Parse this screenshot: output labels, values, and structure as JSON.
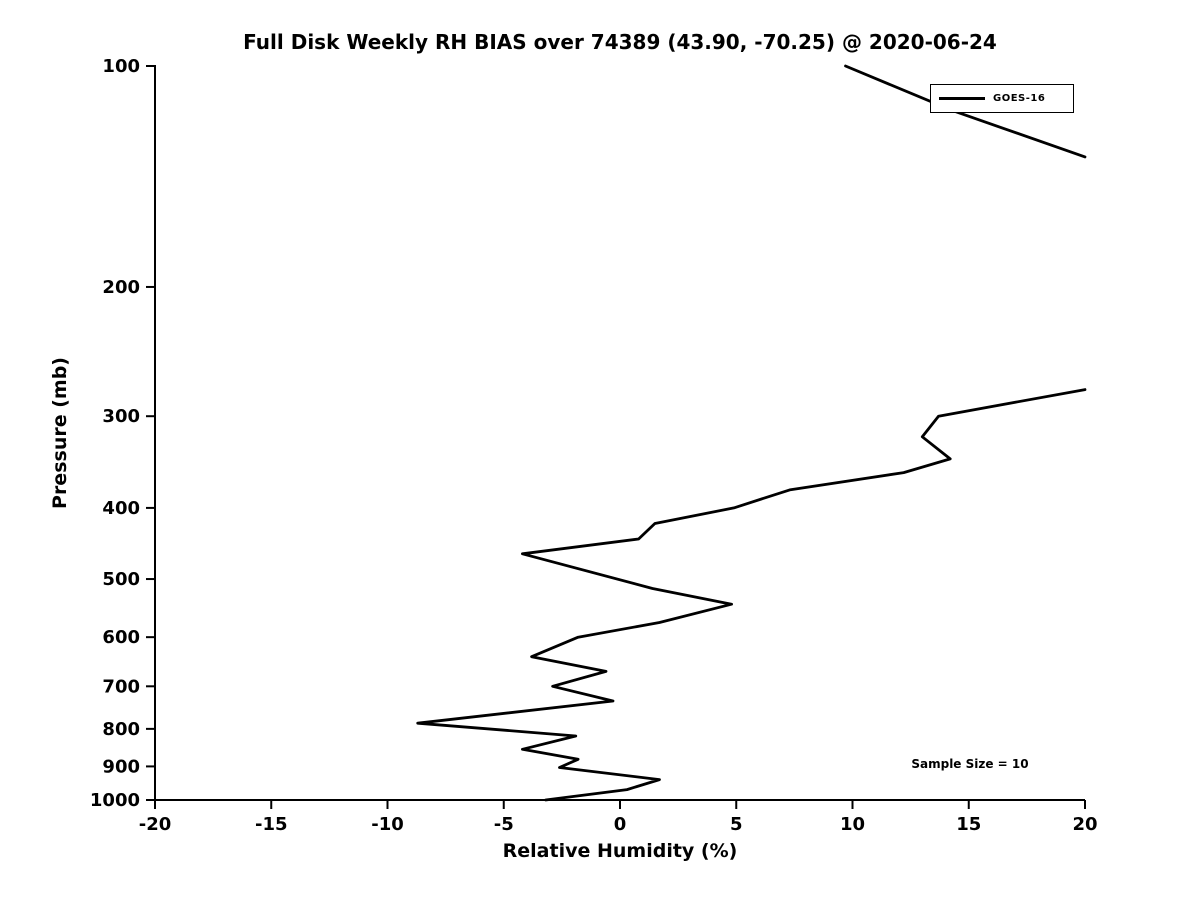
{
  "chart_data": {
    "type": "line",
    "title": "Full Disk Weekly RH BIAS over 74389 (43.90, -70.25) @ 2020-06-24",
    "xlabel": "Relative Humidity (%)",
    "ylabel": "Pressure (mb)",
    "xlim": [
      -20,
      20
    ],
    "ylim": [
      100,
      1000
    ],
    "x_scale": "linear",
    "y_scale": "log",
    "y_reversed": true,
    "grid": false,
    "x_ticks": [
      -20,
      -15,
      -10,
      -5,
      0,
      5,
      10,
      15,
      20
    ],
    "y_ticks": [
      100,
      200,
      300,
      400,
      500,
      600,
      700,
      800,
      900,
      1000
    ],
    "legend_position": "top-right",
    "legend_entries": [
      {
        "label": "GOES-16",
        "color": "#000000"
      }
    ],
    "annotations": [
      {
        "text": "Sample Size = 10"
      }
    ],
    "series": [
      {
        "name": "GOES-16",
        "color": "#000000",
        "note": "pairs are [pressure_mb, rh_bias_percent]; two visible segments, line exits right edge (>20%) between ~133 mb and ~276 mb",
        "segments": [
          [
            [
              100,
              9.7
            ],
            [
              115,
              14.3
            ],
            [
              133,
              20.0
            ]
          ],
          [
            [
              276,
              20.0
            ],
            [
              300,
              13.7
            ],
            [
              320,
              13.0
            ],
            [
              343,
              14.2
            ],
            [
              358,
              12.2
            ],
            [
              378,
              7.3
            ],
            [
              400,
              4.9
            ],
            [
              420,
              1.5
            ],
            [
              441,
              0.8
            ],
            [
              462,
              -4.2
            ],
            [
              515,
              1.4
            ],
            [
              541,
              4.8
            ],
            [
              573,
              1.7
            ],
            [
              600,
              -1.8
            ],
            [
              638,
              -3.8
            ],
            [
              668,
              -0.6
            ],
            [
              700,
              -2.9
            ],
            [
              733,
              -0.3
            ],
            [
              786,
              -8.7
            ],
            [
              818,
              -1.9
            ],
            [
              853,
              -4.2
            ],
            [
              880,
              -1.8
            ],
            [
              903,
              -2.6
            ],
            [
              938,
              1.7
            ],
            [
              968,
              0.3
            ],
            [
              1000,
              -3.2
            ]
          ]
        ]
      }
    ]
  }
}
